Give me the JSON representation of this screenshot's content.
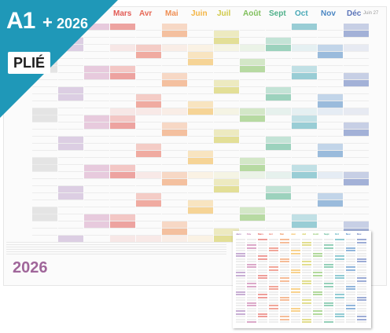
{
  "banner": {
    "format": "A1",
    "plus": "+",
    "year": "2026",
    "folded": "PLIÉ",
    "color": "#1f98b8"
  },
  "months": [
    {
      "name": "Mars",
      "color": "#e25b55"
    },
    {
      "name": "Avr",
      "color": "#e76a57"
    },
    {
      "name": "Mai",
      "color": "#ef8f54"
    },
    {
      "name": "Juin",
      "color": "#f3b443"
    },
    {
      "name": "Juil",
      "color": "#cfc845"
    },
    {
      "name": "Août",
      "color": "#7fbf5a"
    },
    {
      "name": "Sept",
      "color": "#4fb08a"
    },
    {
      "name": "Oct",
      "color": "#48a8b6"
    },
    {
      "name": "Nov",
      "color": "#4a86c3"
    },
    {
      "name": "Déc",
      "color": "#5b74b9"
    }
  ],
  "next_year_label": "Juin 27",
  "poster_year": "2026",
  "mini_months": [
    "Janv",
    "Fév",
    "Mars",
    "Avr",
    "Mai",
    "Juin",
    "Juil",
    "Août",
    "Sept",
    "Oct",
    "Nov",
    "Déc"
  ],
  "mini_colors": [
    "#a37ab7",
    "#c36fa5",
    "#e25b55",
    "#e76a57",
    "#ef8f54",
    "#f3b443",
    "#cfc845",
    "#7fbf5a",
    "#4fb08a",
    "#48a8b6",
    "#4a86c3",
    "#5b74b9"
  ],
  "left_colors": [
    "#b9b9b9",
    "#a37ab7",
    "#c36fa5"
  ]
}
